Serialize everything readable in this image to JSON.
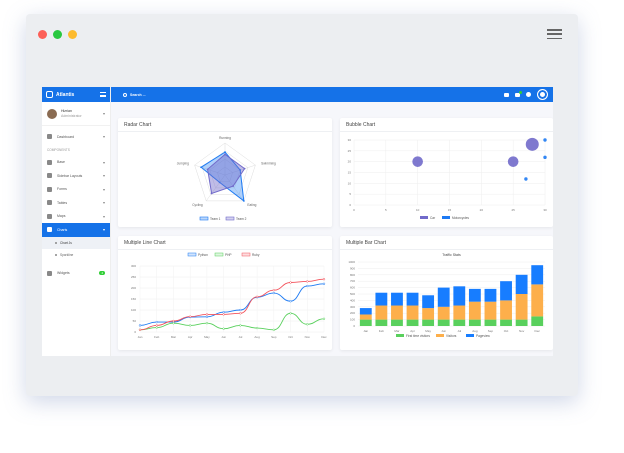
{
  "window": {
    "dot_colors": [
      "#fc5f57",
      "#fdbb2e",
      "#29c840"
    ]
  },
  "brand": {
    "name": "Atlantis"
  },
  "user": {
    "name": "Hizrian",
    "role": "Administrator"
  },
  "nav": {
    "dashboard": "Dashboard",
    "section": "COMPONENTS",
    "base": "Base",
    "sidebar_layouts": "Sidebar Layouts",
    "forms": "Forms",
    "tables": "Tables",
    "maps": "Maps",
    "charts": "Charts",
    "chart_js": "Chart Js",
    "sparkline": "Sparkline",
    "widgets": "Widgets",
    "widgets_badge": "4"
  },
  "topbar": {
    "search_placeholder": "Search ..."
  },
  "radar": {
    "title": "Radar Chart"
  },
  "bubble": {
    "title": "Bubble Chart"
  },
  "line": {
    "title": "Multiple Line Chart"
  },
  "bar": {
    "title": "Multiple Bar Chart"
  },
  "chart_data": [
    {
      "type": "radar",
      "title": "Radar Chart",
      "axes": [
        "Running",
        "Swimming",
        "Eating",
        "Cycling",
        "Jumping"
      ],
      "series": [
        {
          "name": "Team 1",
          "color": "#1d7af3",
          "values": [
            50,
            35,
            70,
            20,
            55
          ]
        },
        {
          "name": "Team 2",
          "color": "#716aca",
          "values": [
            45,
            45,
            30,
            50,
            40
          ]
        }
      ]
    },
    {
      "type": "scatter",
      "title": "Bubble Chart",
      "xlim": [
        0,
        30
      ],
      "ylim": [
        0,
        30
      ],
      "xticks": [
        0,
        5,
        10,
        15,
        20,
        25,
        30
      ],
      "yticks": [
        0,
        5,
        10,
        15,
        20,
        25,
        30
      ],
      "series": [
        {
          "name": "Car",
          "color": "#716aca",
          "points": [
            [
              10,
              20,
              4
            ],
            [
              25,
              20,
              4
            ],
            [
              28,
              28,
              5
            ]
          ]
        },
        {
          "name": "Motorcycles",
          "color": "#1d7af3",
          "points": [
            [
              30,
              30,
              1
            ],
            [
              30,
              22,
              1
            ],
            [
              27,
              12,
              1
            ]
          ]
        }
      ]
    },
    {
      "type": "line",
      "title": "Multiple Line Chart",
      "categories": [
        "Jan",
        "Feb",
        "Mar",
        "Apr",
        "May",
        "Jun",
        "Jul",
        "Aug",
        "Sep",
        "Oct",
        "Nov",
        "Dec"
      ],
      "ylim": [
        0,
        300
      ],
      "yticks": [
        0,
        50,
        100,
        150,
        200,
        250,
        300
      ],
      "series": [
        {
          "name": "Python",
          "color": "#1d7af3",
          "values": [
            30,
            45,
            45,
            68,
            69,
            90,
            100,
            158,
            177,
            140,
            209,
            219
          ]
        },
        {
          "name": "PHP",
          "color": "#59d05d",
          "values": [
            10,
            20,
            40,
            30,
            40,
            15,
            30,
            18,
            10,
            85,
            35,
            60
          ]
        },
        {
          "name": "Ruby",
          "color": "#f3545d",
          "values": [
            10,
            30,
            50,
            70,
            80,
            80,
            85,
            160,
            190,
            225,
            230,
            240
          ]
        }
      ]
    },
    {
      "type": "bar",
      "title": "Multiple Bar Chart",
      "subtitle": "Traffic Stats",
      "stacked": true,
      "categories": [
        "Jan",
        "Feb",
        "Mar",
        "Apr",
        "May",
        "Jun",
        "Jul",
        "Aug",
        "Sep",
        "Oct",
        "Nov",
        "Dec"
      ],
      "ylim": [
        0,
        1000
      ],
      "yticks": [
        0,
        100,
        200,
        300,
        400,
        500,
        600,
        700,
        800,
        900,
        1000
      ],
      "series": [
        {
          "name": "First time visitors",
          "color": "#59d05d",
          "values": [
            100,
            100,
            100,
            100,
            100,
            100,
            100,
            100,
            100,
            100,
            100,
            150
          ]
        },
        {
          "name": "Visitors",
          "color": "#fdaf4b",
          "values": [
            80,
            220,
            220,
            220,
            180,
            200,
            220,
            280,
            280,
            300,
            400,
            500
          ]
        },
        {
          "name": "Pageview",
          "color": "#177dff",
          "values": [
            100,
            200,
            200,
            200,
            200,
            300,
            300,
            200,
            200,
            300,
            300,
            300
          ]
        }
      ]
    }
  ]
}
